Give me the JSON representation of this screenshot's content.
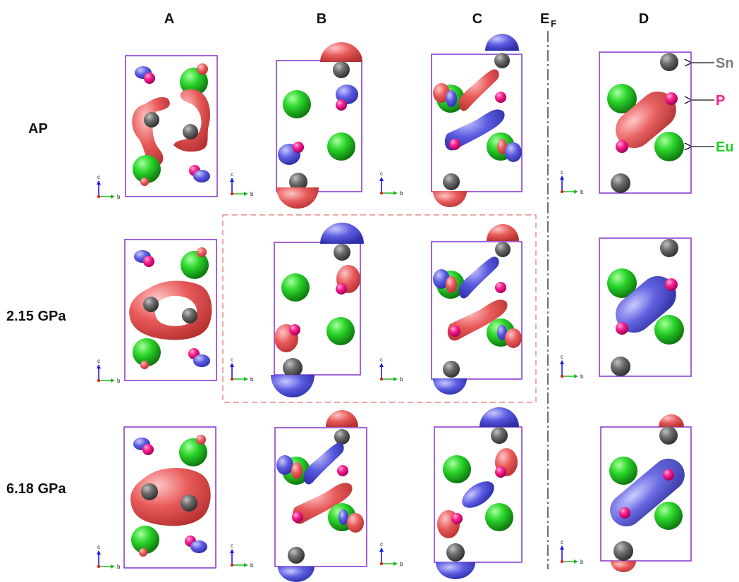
{
  "columns": {
    "a": "A",
    "b": "B",
    "c": "C",
    "ef_main": "E",
    "ef_sub": "F",
    "d": "D"
  },
  "rows": {
    "ap": "AP",
    "p215": "2.15 GPa",
    "p618": "6.18 GPa"
  },
  "legend": {
    "sn": "Sn",
    "p": "P",
    "eu": "Eu"
  },
  "axes": {
    "c": "c",
    "b": "b"
  },
  "colors": {
    "cell_frame": "#8a3fd1",
    "eu_atom": "#2bd62b",
    "sn_atom": "#6e6e6e",
    "p_atom": "#ff1f8f",
    "red_lobe": "#e85a5a",
    "blue_lobe": "#5a5ae0",
    "highlight_box": "#e87070",
    "ef_line": "#222222"
  }
}
